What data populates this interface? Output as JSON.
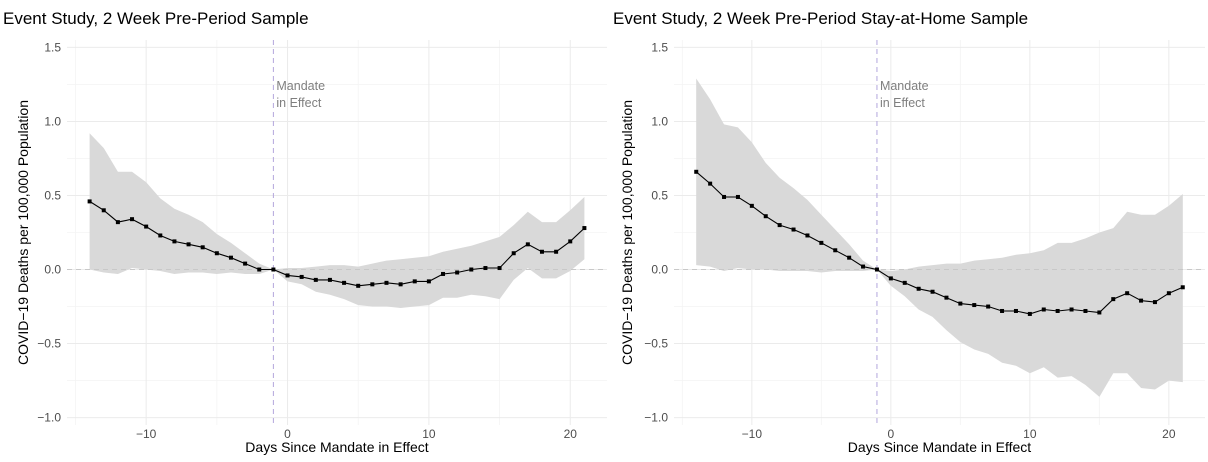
{
  "colors": {
    "ribbon": "#d9d9d9",
    "line": "#000000",
    "grid_major": "#ebebeb",
    "grid_minor": "#f4f4f4",
    "zero_line": "#c8c8c8",
    "mandate_line": "#b3a6dd",
    "annotation": "#7f7f7f"
  },
  "chart_data": [
    {
      "type": "line",
      "title": "Event Study, 2 Week Pre-Period Sample",
      "xlabel": "Days Since Mandate in Effect",
      "ylabel": "COVID−19 Deaths per 100,000 Population",
      "xlim": [
        -15.6,
        22.6
      ],
      "ylim": [
        -1.05,
        1.55
      ],
      "x_ticks": [
        {
          "value": -10,
          "label": "−10"
        },
        {
          "value": 0,
          "label": "0"
        },
        {
          "value": 10,
          "label": "10"
        },
        {
          "value": 20,
          "label": "20"
        }
      ],
      "y_ticks": [
        {
          "value": 1.5,
          "label": "1.5"
        },
        {
          "value": 1.0,
          "label": "1.0"
        },
        {
          "value": 0.5,
          "label": "0.5"
        },
        {
          "value": 0.0,
          "label": "0.0"
        },
        {
          "value": -0.5,
          "label": "−0.5"
        },
        {
          "value": -1.0,
          "label": "−1.0"
        }
      ],
      "grid": true,
      "reference_lines": {
        "horizontal_y": 0,
        "vertical_x": -1
      },
      "annotation": {
        "lines": [
          "Mandate",
          "in Effect"
        ],
        "x": -1,
        "y": 1.24
      },
      "series": [
        {
          "x": [
            -14,
            -13,
            -12,
            -11,
            -10,
            -9,
            -8,
            -7,
            -6,
            -5,
            -4,
            -3,
            -2,
            -1,
            0,
            1,
            2,
            3,
            4,
            5,
            6,
            7,
            8,
            9,
            10,
            11,
            12,
            13,
            14,
            15,
            16,
            17,
            18,
            19,
            20,
            21
          ],
          "values": [
            0.46,
            0.4,
            0.32,
            0.34,
            0.29,
            0.23,
            0.19,
            0.17,
            0.15,
            0.11,
            0.08,
            0.04,
            0.0,
            0.0,
            -0.04,
            -0.05,
            -0.07,
            -0.07,
            -0.09,
            -0.11,
            -0.1,
            -0.09,
            -0.1,
            -0.08,
            -0.08,
            -0.03,
            -0.02,
            0.0,
            0.01,
            0.01,
            0.11,
            0.17,
            0.12,
            0.12,
            0.19,
            0.28
          ],
          "upper": [
            0.92,
            0.82,
            0.66,
            0.66,
            0.59,
            0.48,
            0.41,
            0.37,
            0.32,
            0.24,
            0.18,
            0.11,
            0.04,
            0.0,
            0.01,
            0.01,
            0.02,
            0.03,
            0.03,
            0.02,
            0.04,
            0.06,
            0.07,
            0.08,
            0.09,
            0.12,
            0.14,
            0.16,
            0.19,
            0.22,
            0.3,
            0.39,
            0.32,
            0.32,
            0.4,
            0.49
          ],
          "lower": [
            0.0,
            -0.02,
            -0.03,
            0.01,
            0.0,
            -0.01,
            -0.03,
            -0.02,
            -0.02,
            -0.03,
            -0.02,
            -0.03,
            -0.03,
            0.0,
            -0.08,
            -0.1,
            -0.15,
            -0.17,
            -0.2,
            -0.24,
            -0.25,
            -0.25,
            -0.26,
            -0.25,
            -0.24,
            -0.19,
            -0.19,
            -0.17,
            -0.18,
            -0.2,
            -0.07,
            0.01,
            -0.06,
            -0.06,
            -0.01,
            0.07
          ]
        }
      ]
    },
    {
      "type": "line",
      "title": "Event Study, 2 Week Pre-Period Stay-at-Home Sample",
      "xlabel": "Days Since Mandate in Effect",
      "ylabel": "COVID−19 Deaths per 100,000 Population",
      "xlim": [
        -15.6,
        22.6
      ],
      "ylim": [
        -1.05,
        1.55
      ],
      "x_ticks": [
        {
          "value": -10,
          "label": "−10"
        },
        {
          "value": 0,
          "label": "0"
        },
        {
          "value": 10,
          "label": "10"
        },
        {
          "value": 20,
          "label": "20"
        }
      ],
      "y_ticks": [
        {
          "value": 1.5,
          "label": "1.5"
        },
        {
          "value": 1.0,
          "label": "1.0"
        },
        {
          "value": 0.5,
          "label": "0.5"
        },
        {
          "value": 0.0,
          "label": "0.0"
        },
        {
          "value": -0.5,
          "label": "−0.5"
        },
        {
          "value": -1.0,
          "label": "−1.0"
        }
      ],
      "grid": true,
      "reference_lines": {
        "horizontal_y": 0,
        "vertical_x": -1
      },
      "annotation": {
        "lines": [
          "Mandate",
          "in Effect"
        ],
        "x": -1,
        "y": 1.24
      },
      "series": [
        {
          "x": [
            -14,
            -13,
            -12,
            -11,
            -10,
            -9,
            -8,
            -7,
            -6,
            -5,
            -4,
            -3,
            -2,
            -1,
            0,
            1,
            2,
            3,
            4,
            5,
            6,
            7,
            8,
            9,
            10,
            11,
            12,
            13,
            14,
            15,
            16,
            17,
            18,
            19,
            20,
            21
          ],
          "values": [
            0.66,
            0.58,
            0.49,
            0.49,
            0.43,
            0.36,
            0.3,
            0.27,
            0.23,
            0.18,
            0.13,
            0.08,
            0.02,
            0.0,
            -0.06,
            -0.09,
            -0.13,
            -0.15,
            -0.19,
            -0.23,
            -0.24,
            -0.25,
            -0.28,
            -0.28,
            -0.3,
            -0.27,
            -0.28,
            -0.27,
            -0.28,
            -0.29,
            -0.2,
            -0.16,
            -0.21,
            -0.22,
            -0.16,
            -0.12
          ],
          "upper": [
            1.29,
            1.15,
            0.98,
            0.96,
            0.86,
            0.72,
            0.62,
            0.55,
            0.47,
            0.37,
            0.27,
            0.17,
            0.06,
            0.0,
            -0.01,
            0.0,
            0.02,
            0.03,
            0.04,
            0.04,
            0.06,
            0.07,
            0.08,
            0.1,
            0.11,
            0.13,
            0.18,
            0.18,
            0.21,
            0.25,
            0.28,
            0.39,
            0.37,
            0.37,
            0.43,
            0.51
          ],
          "lower": [
            0.03,
            0.02,
            -0.01,
            0.01,
            0.0,
            0.0,
            -0.01,
            -0.01,
            -0.01,
            -0.02,
            -0.01,
            -0.01,
            -0.01,
            0.0,
            -0.11,
            -0.18,
            -0.27,
            -0.32,
            -0.41,
            -0.49,
            -0.54,
            -0.57,
            -0.63,
            -0.65,
            -0.7,
            -0.66,
            -0.73,
            -0.72,
            -0.78,
            -0.86,
            -0.7,
            -0.7,
            -0.8,
            -0.81,
            -0.75,
            -0.76
          ]
        }
      ]
    }
  ]
}
